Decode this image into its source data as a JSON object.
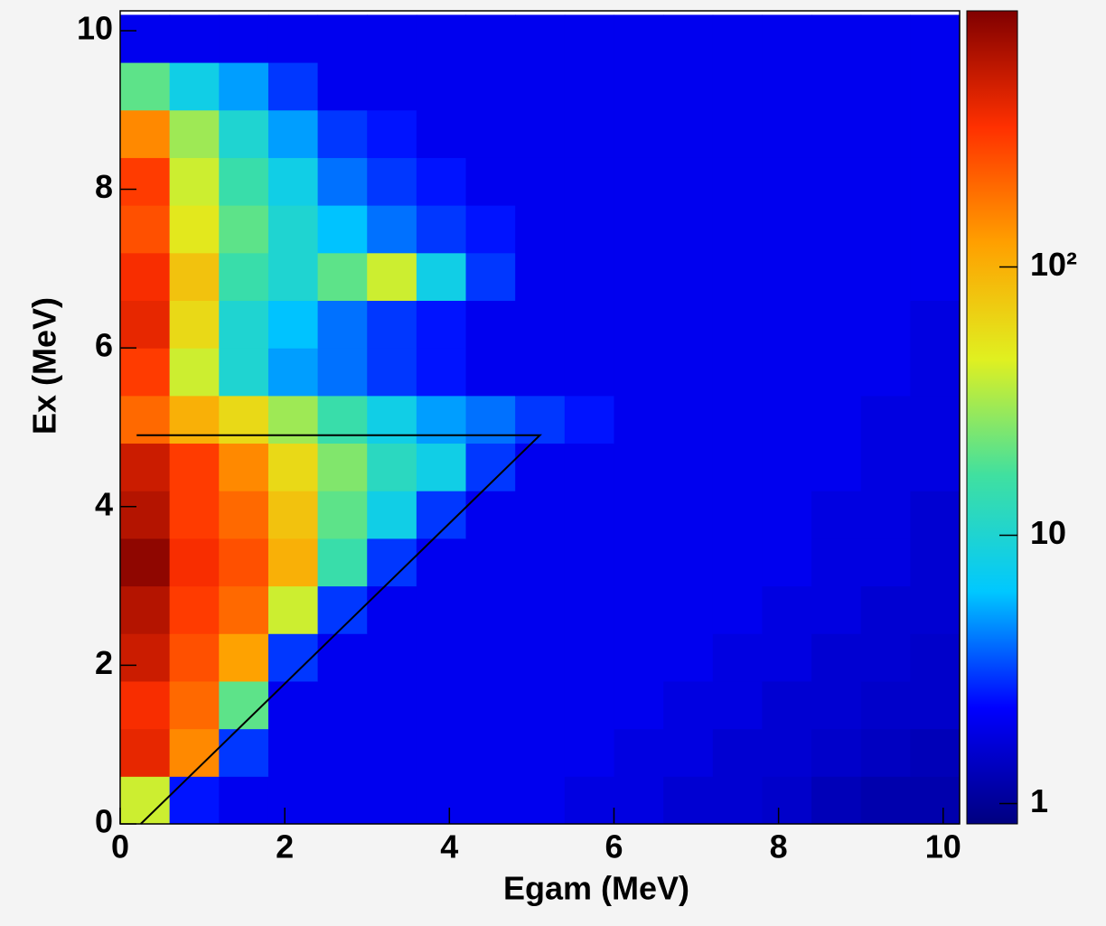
{
  "chart_data": {
    "type": "heatmap",
    "xlabel": "Egam (MeV)",
    "ylabel": "Ex (MeV)",
    "xlim": [
      0,
      10.2
    ],
    "ylim": [
      0,
      10.25
    ],
    "xticks": [
      0,
      2,
      4,
      6,
      8,
      10
    ],
    "yticks": [
      0,
      2,
      4,
      6,
      8,
      10
    ],
    "xbins": [
      0,
      0.6,
      1.2,
      1.8,
      2.4,
      3.0,
      3.6,
      4.2,
      4.8,
      5.4,
      6.0,
      6.6,
      7.2,
      7.8,
      8.4,
      9.0,
      9.6,
      10.2
    ],
    "ybins": [
      0,
      0.6,
      1.2,
      1.8,
      2.4,
      3.0,
      3.6,
      4.2,
      4.8,
      5.4,
      6.0,
      6.6,
      7.2,
      7.8,
      8.4,
      9.0,
      9.6,
      10.2
    ],
    "z": [
      [
        40,
        2.5,
        2,
        2,
        2,
        2,
        2,
        2,
        2,
        1.8,
        1.8,
        1.6,
        1.6,
        1.5,
        1.3,
        1.2,
        1.2
      ],
      [
        400,
        150,
        3,
        2,
        2,
        2,
        2,
        2,
        2,
        2,
        1.8,
        1.8,
        1.6,
        1.6,
        1.5,
        1.4,
        1.3
      ],
      [
        350,
        200,
        20,
        2,
        2,
        2,
        2,
        2,
        2,
        2,
        2,
        1.8,
        1.8,
        1.6,
        1.6,
        1.5,
        1.5
      ],
      [
        500,
        250,
        120,
        3,
        2,
        2,
        2,
        2,
        2,
        2,
        2,
        2,
        1.8,
        1.8,
        1.6,
        1.6,
        1.5
      ],
      [
        600,
        300,
        200,
        40,
        3,
        2,
        2,
        2,
        2,
        2,
        2,
        2,
        2,
        1.8,
        1.8,
        1.6,
        1.6
      ],
      [
        800,
        350,
        250,
        100,
        15,
        3,
        2,
        2,
        2,
        2,
        2,
        2,
        2,
        2,
        1.8,
        1.8,
        1.6
      ],
      [
        600,
        300,
        200,
        80,
        20,
        8,
        3,
        2,
        2,
        2,
        2,
        2,
        2,
        2,
        1.8,
        1.8,
        1.6
      ],
      [
        500,
        300,
        150,
        60,
        25,
        12,
        8,
        3,
        2,
        2,
        2,
        2,
        2,
        2,
        2,
        1.8,
        1.8
      ],
      [
        200,
        100,
        60,
        30,
        15,
        8,
        5,
        4,
        3,
        2.5,
        2,
        2,
        2,
        2,
        2,
        1.8,
        1.8
      ],
      [
        300,
        40,
        10,
        5,
        4,
        3,
        2.5,
        2,
        2,
        2,
        2,
        2,
        2,
        2,
        2,
        2,
        1.8
      ],
      [
        400,
        60,
        10,
        6,
        4,
        3,
        2.5,
        2,
        2,
        2,
        2,
        2,
        2,
        2,
        2,
        2,
        1.8
      ],
      [
        350,
        80,
        15,
        10,
        20,
        40,
        8,
        3,
        2,
        2,
        2,
        2,
        2,
        2,
        2,
        2,
        2
      ],
      [
        250,
        50,
        20,
        10,
        6,
        4,
        3,
        2.5,
        2,
        2,
        2,
        2,
        2,
        2,
        2,
        2,
        2
      ],
      [
        300,
        40,
        15,
        8,
        4,
        3,
        2.5,
        2,
        2,
        2,
        2,
        2,
        2,
        2,
        2,
        2,
        2
      ],
      [
        150,
        30,
        10,
        5,
        3,
        2.5,
        2,
        2,
        2,
        2,
        2,
        2,
        2,
        2,
        2,
        2,
        2
      ],
      [
        20,
        8,
        5,
        3,
        2,
        2,
        2,
        2,
        2,
        2,
        2,
        2,
        2,
        2,
        2,
        2,
        2
      ],
      [
        2,
        2,
        2,
        2,
        2,
        2,
        2,
        2,
        2,
        2,
        2,
        2,
        2,
        2,
        2,
        2,
        2
      ]
    ],
    "zlim": [
      0.84,
      900
    ],
    "zlog": true,
    "zticks": [
      1,
      10,
      {
        "value": 100,
        "label": "10²"
      }
    ],
    "colormap": [
      "#000080",
      "#0000ff",
      "#00c8ff",
      "#40e0a0",
      "#e0f020",
      "#ffa000",
      "#ff3000",
      "#800000"
    ],
    "cut": {
      "x": [
        0.2,
        5.1,
        0.25
      ],
      "y": [
        4.9,
        4.9,
        0
      ]
    }
  }
}
